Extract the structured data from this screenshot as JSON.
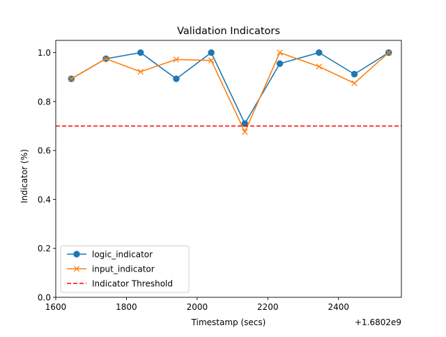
{
  "chart_data": {
    "type": "line",
    "title": "Validation Indicators",
    "xlabel": "Timestamp (secs)",
    "ylabel": "Indicator (%)",
    "x_offset_label": "+1.6802e9",
    "xlim": [
      1600,
      2578
    ],
    "ylim": [
      0.0,
      1.05
    ],
    "x_ticks": [
      1600,
      1800,
      2000,
      2200,
      2400
    ],
    "x_tick_labels": [
      "1600",
      "1800",
      "2000",
      "2200",
      "2400"
    ],
    "y_ticks": [
      0.0,
      0.2,
      0.4,
      0.6,
      0.8,
      1.0
    ],
    "y_tick_labels": [
      "0.0",
      "0.2",
      "0.4",
      "0.6",
      "0.8",
      "1.0"
    ],
    "grid": false,
    "legend_position": "lower-left",
    "x": [
      1644,
      1742,
      1840,
      1941,
      2040,
      2135,
      2234,
      2345,
      2445,
      2542
    ],
    "series": [
      {
        "name": "logic_indicator",
        "color": "#1f77b4",
        "marker": "circle",
        "values": [
          0.893,
          0.975,
          1.0,
          0.893,
          1.0,
          0.71,
          0.955,
          1.0,
          0.912,
          1.0
        ]
      },
      {
        "name": "input_indicator",
        "color": "#ff7f0e",
        "marker": "x",
        "values": [
          0.893,
          0.975,
          0.922,
          0.972,
          0.968,
          0.676,
          1.0,
          0.943,
          0.875,
          1.0
        ]
      }
    ],
    "threshold": {
      "name": "Indicator Threshold",
      "color": "#ff0000",
      "style": "dashed",
      "value": 0.7
    }
  }
}
